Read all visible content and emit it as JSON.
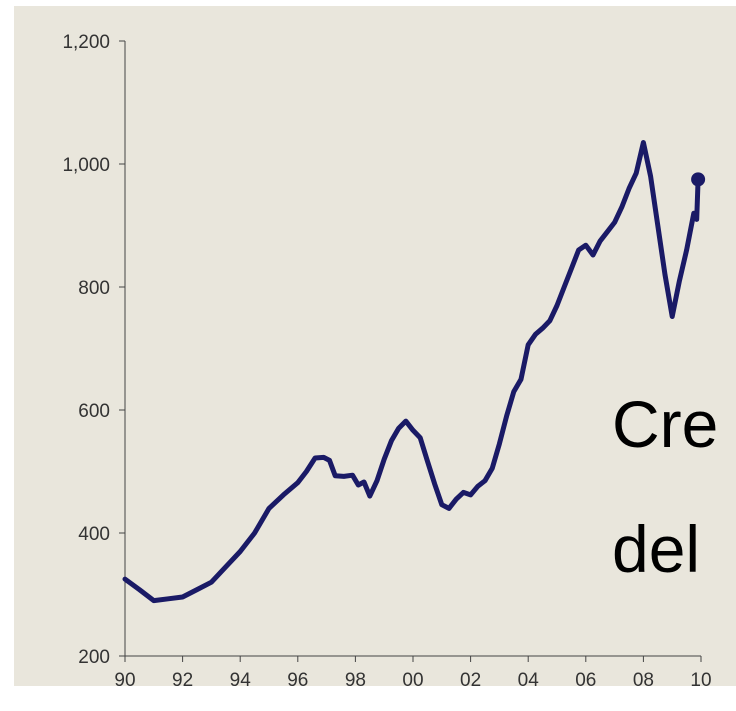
{
  "colors": {
    "plot_background": "#e9e6dc",
    "line": "#1a1a66",
    "axis": "#444444",
    "tick_text": "#333333",
    "overlay_text": "#000000"
  },
  "overlay_text": {
    "line1": "Cre",
    "line2": "del"
  },
  "chart_data": {
    "type": "line",
    "title": "",
    "xlabel": "",
    "ylabel": "",
    "xlim": [
      1990,
      2010
    ],
    "ylim": [
      200,
      1200
    ],
    "grid": false,
    "legend": "none",
    "xticks": [
      {
        "value": 1990,
        "label": "90"
      },
      {
        "value": 1992,
        "label": "92"
      },
      {
        "value": 1994,
        "label": "94"
      },
      {
        "value": 1996,
        "label": "96"
      },
      {
        "value": 1998,
        "label": "98"
      },
      {
        "value": 2000,
        "label": "00"
      },
      {
        "value": 2002,
        "label": "02"
      },
      {
        "value": 2004,
        "label": "04"
      },
      {
        "value": 2006,
        "label": "06"
      },
      {
        "value": 2008,
        "label": "08"
      },
      {
        "value": 2010,
        "label": "10"
      }
    ],
    "yticks": [
      {
        "value": 200,
        "label": "200"
      },
      {
        "value": 400,
        "label": "400"
      },
      {
        "value": 600,
        "label": "600"
      },
      {
        "value": 800,
        "label": "800"
      },
      {
        "value": 1000,
        "label": "1,000"
      },
      {
        "value": 1200,
        "label": "1,200"
      }
    ],
    "series": [
      {
        "x": [
          1990.0,
          1990.5,
          1991.0,
          1991.5,
          1992.0,
          1992.5,
          1993.0,
          1993.5,
          1994.0,
          1994.5,
          1995.0,
          1995.5,
          1996.0,
          1996.3,
          1996.6,
          1996.9,
          1997.1,
          1997.3,
          1997.6,
          1997.9,
          1998.1,
          1998.3,
          1998.5,
          1998.75,
          1999.0,
          1999.25,
          1999.5,
          1999.75,
          2000.0,
          2000.25,
          2000.5,
          2000.75,
          2001.0,
          2001.25,
          2001.5,
          2001.75,
          2002.0,
          2002.25,
          2002.5,
          2002.75,
          2003.0,
          2003.25,
          2003.5,
          2003.75,
          2004.0,
          2004.25,
          2004.5,
          2004.75,
          2005.0,
          2005.25,
          2005.5,
          2005.75,
          2006.0,
          2006.25,
          2006.5,
          2006.75,
          2007.0,
          2007.25,
          2007.5,
          2007.75,
          2008.0,
          2008.25,
          2008.5,
          2008.75,
          2009.0,
          2009.25,
          2009.5,
          2009.75,
          2009.85,
          2009.9
        ],
        "values": [
          325,
          308,
          290,
          293,
          296,
          308,
          320,
          345,
          370,
          400,
          440,
          462,
          482,
          500,
          522,
          523,
          518,
          493,
          492,
          494,
          478,
          483,
          460,
          485,
          520,
          550,
          570,
          582,
          567,
          555,
          517,
          480,
          446,
          440,
          455,
          466,
          462,
          476,
          485,
          505,
          545,
          590,
          630,
          650,
          706,
          723,
          733,
          745,
          770,
          800,
          830,
          860,
          868,
          852,
          875,
          890,
          905,
          930,
          960,
          985,
          1035,
          980,
          900,
          820,
          752,
          810,
          860,
          920,
          910,
          975
        ]
      }
    ]
  }
}
